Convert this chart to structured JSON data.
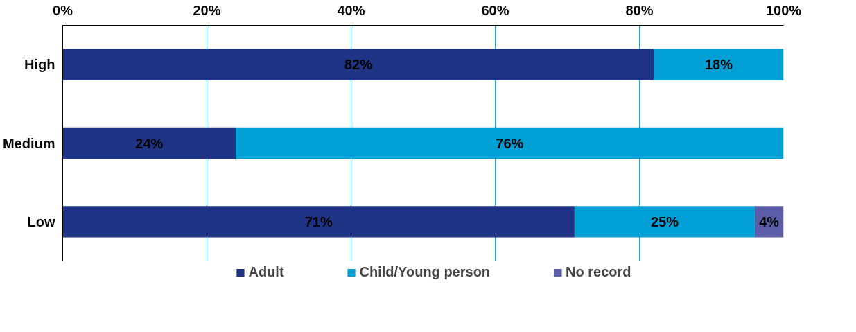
{
  "chart_data": {
    "type": "bar",
    "orientation": "horizontal",
    "stacked": true,
    "categories": [
      "High",
      "Medium",
      "Low"
    ],
    "series": [
      {
        "name": "Adult",
        "color": "#1f3484",
        "values": [
          82,
          24,
          71
        ]
      },
      {
        "name": "Child/Young person",
        "color": "#009fd6",
        "values": [
          18,
          76,
          25
        ]
      },
      {
        "name": "No record",
        "color": "#5b5ea6",
        "values": [
          null,
          null,
          4
        ]
      }
    ],
    "xlim": [
      0,
      100
    ],
    "xticks": [
      {
        "value": 0,
        "label": "0%"
      },
      {
        "value": 20,
        "label": "20%"
      },
      {
        "value": 40,
        "label": "40%"
      },
      {
        "value": 60,
        "label": "60%"
      },
      {
        "value": 80,
        "label": "80%"
      },
      {
        "value": 100,
        "label": "100%"
      }
    ],
    "value_labels": [
      [
        "82%",
        "24%",
        "71%"
      ],
      [
        "18%",
        "76%",
        "25%"
      ],
      [
        null,
        null,
        "4%"
      ]
    ],
    "grid": "x",
    "legend": "bottom"
  }
}
